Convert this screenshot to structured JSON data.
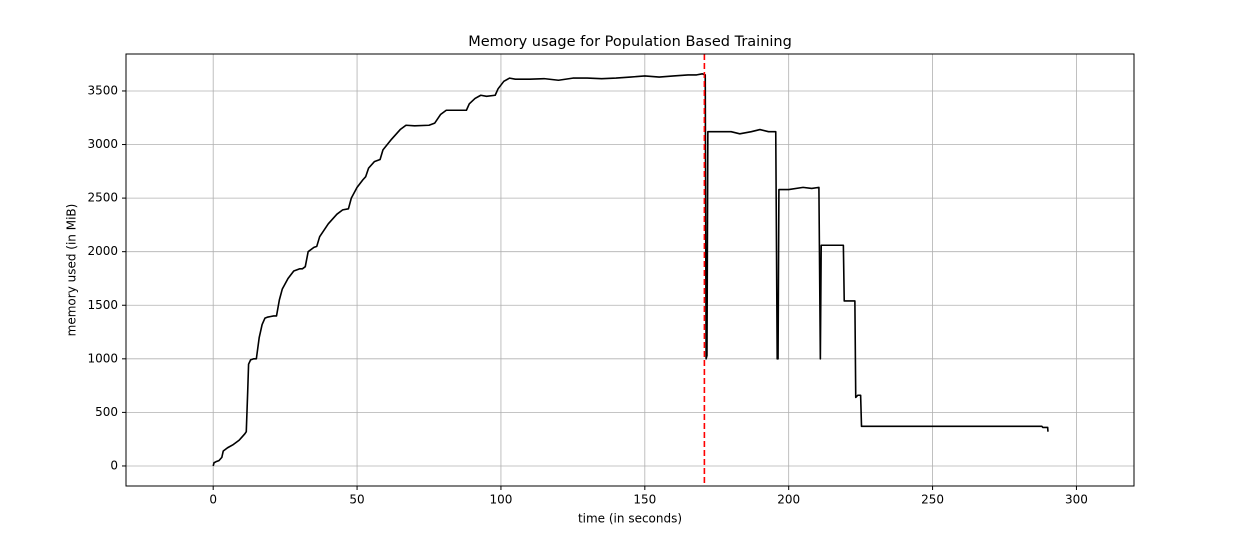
{
  "chart_data": {
    "type": "line",
    "title": "Memory usage for Population Based Training",
    "x_label": "time (in seconds)",
    "y_label": "memory used (in MiB)",
    "x": [
      0,
      0.3,
      1,
      2,
      3,
      3.5,
      5,
      7,
      9,
      10,
      11,
      11.5,
      12,
      12.3,
      13,
      14,
      15,
      16,
      17,
      18,
      19,
      20,
      21,
      22,
      23,
      24,
      26,
      28,
      30,
      31,
      32,
      33,
      35,
      36,
      37,
      40,
      43,
      45,
      47,
      48,
      50,
      52,
      53,
      54,
      56,
      58,
      59,
      62,
      65,
      67,
      70,
      75,
      77,
      79,
      81,
      84,
      88,
      89,
      91,
      93,
      95,
      98,
      99,
      101,
      103,
      105,
      110,
      115,
      120,
      125,
      130,
      135,
      140,
      145,
      150,
      155,
      160,
      165,
      168,
      170,
      171,
      171.3,
      171.6,
      171.9,
      175,
      180,
      183,
      187,
      190,
      193,
      195.5,
      196,
      196.3,
      196.6,
      200,
      205,
      208,
      210.5,
      211,
      211.3,
      215,
      219,
      219.3,
      223,
      223.3,
      224,
      225,
      225.3,
      250,
      288,
      288.3,
      290,
      290.1
    ],
    "series": [
      {
        "name": "memory",
        "color": "#000000",
        "values": [
          0,
          30,
          40,
          50,
          80,
          140,
          170,
          200,
          240,
          270,
          300,
          320,
          700,
          950,
          990,
          1000,
          1000,
          1200,
          1320,
          1380,
          1390,
          1395,
          1400,
          1400,
          1550,
          1650,
          1750,
          1820,
          1840,
          1840,
          1860,
          2000,
          2040,
          2050,
          2140,
          2260,
          2350,
          2390,
          2400,
          2500,
          2600,
          2670,
          2700,
          2780,
          2840,
          2860,
          2950,
          3050,
          3140,
          3180,
          3175,
          3180,
          3200,
          3280,
          3320,
          3320,
          3320,
          3380,
          3430,
          3460,
          3450,
          3460,
          3520,
          3590,
          3620,
          3610,
          3610,
          3615,
          3600,
          3620,
          3620,
          3615,
          3620,
          3630,
          3640,
          3630,
          3640,
          3650,
          3650,
          3660,
          3650,
          1000,
          1030,
          3120,
          3120,
          3120,
          3100,
          3120,
          3140,
          3120,
          3120,
          1000,
          1000,
          2580,
          2580,
          2600,
          2590,
          2600,
          1000,
          2060,
          2060,
          2060,
          1540,
          1540,
          640,
          660,
          660,
          370,
          370,
          370,
          360,
          360,
          320
        ]
      }
    ],
    "vline": {
      "x": 170.7,
      "color": "#ff0000"
    },
    "xlim": [
      -30.3,
      320
    ],
    "ylim": [
      -187,
      3845
    ],
    "xticks": [
      0,
      50,
      100,
      150,
      200,
      250,
      300
    ],
    "yticks": [
      0,
      500,
      1000,
      1500,
      2000,
      2500,
      3000,
      3500
    ],
    "grid": true
  }
}
